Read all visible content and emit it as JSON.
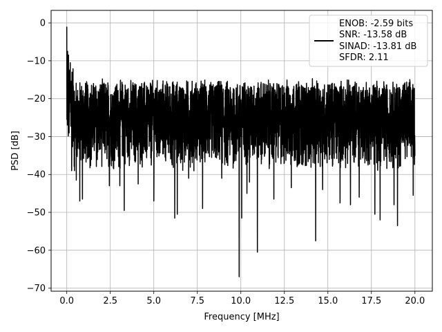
{
  "chart_data": {
    "type": "line",
    "title": "",
    "xlabel": "Frequency [MHz]",
    "ylabel": "PSD [dB]",
    "xlim": [
      -0.9,
      21.0
    ],
    "ylim": [
      -70.8,
      3.3
    ],
    "grid": true,
    "x_ticks": [
      0.0,
      2.5,
      5.0,
      7.5,
      10.0,
      12.5,
      15.0,
      17.5,
      20.0
    ],
    "x_tick_labels": [
      "0.0",
      "2.5",
      "5.0",
      "7.5",
      "10.0",
      "12.5",
      "15.0",
      "17.5",
      "20.0"
    ],
    "y_ticks": [
      0,
      -10,
      -20,
      -30,
      -40,
      -50,
      -60,
      -70
    ],
    "y_tick_labels": [
      "0",
      "−10",
      "−20",
      "−30",
      "−40",
      "−50",
      "−60",
      "−70"
    ],
    "legend": {
      "placement": "top-right",
      "entries": [
        "ENOB: -2.59 bits",
        "SNR: -13.58 dB",
        "SINAD: -13.81 dB",
        "SFDR: 2.11"
      ]
    },
    "series": [
      {
        "color": "#000000",
        "x_range": [
          0.0,
          20.0
        ],
        "noise_band_db": [
          -38,
          -16
        ],
        "peaks": [
          {
            "x": 0.0,
            "y": -1.0
          },
          {
            "x": 0.05,
            "y": -7.5
          },
          {
            "x": 0.1,
            "y": -8.5
          },
          {
            "x": 0.2,
            "y": -10.5
          },
          {
            "x": 0.3,
            "y": -13.0
          }
        ],
        "dips": [
          {
            "x": 0.0,
            "y": -25.5
          },
          {
            "x": 0.28,
            "y": -39.0
          },
          {
            "x": 0.45,
            "y": -39.0
          },
          {
            "x": 0.55,
            "y": -41.5
          },
          {
            "x": 0.75,
            "y": -47.0
          },
          {
            "x": 0.9,
            "y": -46.5
          },
          {
            "x": 2.45,
            "y": -43.0
          },
          {
            "x": 3.05,
            "y": -43.0
          },
          {
            "x": 3.3,
            "y": -49.5
          },
          {
            "x": 4.1,
            "y": -42.5
          },
          {
            "x": 5.0,
            "y": -47.0
          },
          {
            "x": 6.2,
            "y": -51.5
          },
          {
            "x": 6.35,
            "y": -50.5
          },
          {
            "x": 7.0,
            "y": -41.0
          },
          {
            "x": 7.8,
            "y": -49.0
          },
          {
            "x": 8.9,
            "y": -41.0
          },
          {
            "x": 9.9,
            "y": -67.0
          },
          {
            "x": 10.05,
            "y": -51.5
          },
          {
            "x": 10.35,
            "y": -45.0
          },
          {
            "x": 10.5,
            "y": -42.0
          },
          {
            "x": 10.95,
            "y": -60.5
          },
          {
            "x": 11.9,
            "y": -46.5
          },
          {
            "x": 12.9,
            "y": -43.5
          },
          {
            "x": 14.3,
            "y": -57.5
          },
          {
            "x": 14.7,
            "y": -44.0
          },
          {
            "x": 15.7,
            "y": -47.5
          },
          {
            "x": 16.3,
            "y": -48.0
          },
          {
            "x": 16.8,
            "y": -46.0
          },
          {
            "x": 17.7,
            "y": -50.5
          },
          {
            "x": 18.0,
            "y": -52.0
          },
          {
            "x": 18.8,
            "y": -48.0
          },
          {
            "x": 19.0,
            "y": -53.5
          },
          {
            "x": 19.9,
            "y": -45.5
          }
        ]
      }
    ]
  }
}
